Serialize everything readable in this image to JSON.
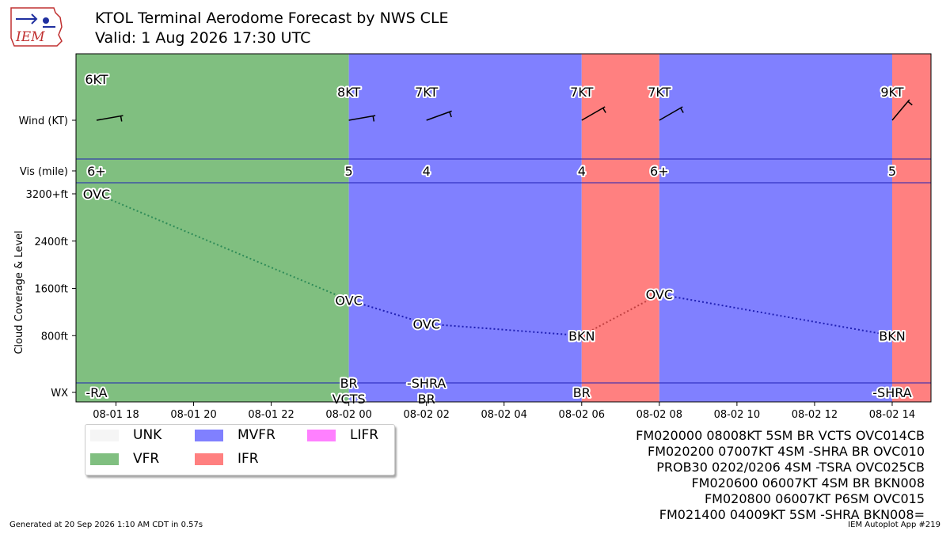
{
  "header": {
    "title": "KTOL Terminal Aerodome Forecast by NWS CLE",
    "subtitle": "Valid: 1 Aug 2026 17:30 UTC",
    "logo_text": "IEM"
  },
  "colors": {
    "UNK": "#f5f5f5",
    "VFR": "#80bf80",
    "MVFR": "#8080ff",
    "IFR": "#ff8080",
    "LIFR": "#ff80ff"
  },
  "chart_data": {
    "type": "timeline",
    "ylabel": "Cloud Coverage & Level",
    "row_labels": [
      "Wind (KT)",
      "Vis (mile)",
      "WX"
    ],
    "y_ticks": [
      "3200+ft",
      "2400ft",
      "1600ft",
      "800ft"
    ],
    "y_tick_values": [
      3200,
      2400,
      1600,
      800
    ],
    "ylim": [
      0,
      3200
    ],
    "x_ticks": [
      "08-01 18",
      "08-01 20",
      "08-01 22",
      "08-02 00",
      "08-02 02",
      "08-02 04",
      "08-02 06",
      "08-02 08",
      "08-02 10",
      "08-02 12",
      "08-02 14"
    ],
    "x_tick_hours": [
      18,
      20,
      22,
      24,
      26,
      28,
      30,
      32,
      34,
      36,
      38
    ],
    "xlim_hours": [
      16.97,
      39.0
    ],
    "periods": [
      {
        "start": 16.97,
        "end": 24.0,
        "category": "VFR"
      },
      {
        "start": 24.0,
        "end": 30.0,
        "category": "MVFR"
      },
      {
        "start": 30.0,
        "end": 32.0,
        "category": "IFR"
      },
      {
        "start": 32.0,
        "end": 38.0,
        "category": "MVFR"
      },
      {
        "start": 38.0,
        "end": 39.0,
        "category": "IFR"
      }
    ],
    "forecasts": [
      {
        "time": 17.5,
        "wind_label": "6KT",
        "wind_dir": 80,
        "wind_kt": 6,
        "vis": "6+",
        "cover": "OVC",
        "level": 3200,
        "wx": [
          "-RA"
        ]
      },
      {
        "time": 24.0,
        "wind_label": "8KT",
        "wind_dir": 80,
        "wind_kt": 8,
        "vis": "5",
        "cover": "OVC",
        "level": 1400,
        "wx": [
          "BR",
          "VCTS"
        ]
      },
      {
        "time": 26.0,
        "wind_label": "7KT",
        "wind_dir": 70,
        "wind_kt": 7,
        "vis": "4",
        "cover": "OVC",
        "level": 1000,
        "wx": [
          "-SHRA",
          "BR"
        ]
      },
      {
        "time": 30.0,
        "wind_label": "7KT",
        "wind_dir": 60,
        "wind_kt": 7,
        "vis": "4",
        "cover": "BKN",
        "level": 800,
        "wx": [
          "BR"
        ]
      },
      {
        "time": 32.0,
        "wind_label": "7KT",
        "wind_dir": 60,
        "wind_kt": 7,
        "vis": "6+",
        "cover": "OVC",
        "level": 1500,
        "wx": []
      },
      {
        "time": 38.0,
        "wind_label": "9KT",
        "wind_dir": 40,
        "wind_kt": 9,
        "vis": "5",
        "cover": "BKN",
        "level": 800,
        "wx": [
          "-SHRA"
        ]
      }
    ]
  },
  "legend": {
    "items": [
      {
        "label": "UNK",
        "key": "UNK"
      },
      {
        "label": "MVFR",
        "key": "MVFR"
      },
      {
        "label": "LIFR",
        "key": "LIFR"
      },
      {
        "label": "VFR",
        "key": "VFR"
      },
      {
        "label": "IFR",
        "key": "IFR"
      }
    ]
  },
  "taf_text": [
    "FM020000 08008KT 5SM BR VCTS OVC014CB",
    "FM020200 07007KT 4SM -SHRA BR OVC010",
    "PROB30 0202/0206 4SM -TSRA OVC025CB",
    "FM020600 06007KT 4SM BR BKN008",
    "FM020800 06007KT P6SM OVC015",
    "FM021400 04009KT 5SM -SHRA BKN008="
  ],
  "footer": {
    "generated": "Generated at 20 Sep 2026 1:10 AM CDT in 0.57s",
    "app": "IEM Autoplot App #219"
  }
}
